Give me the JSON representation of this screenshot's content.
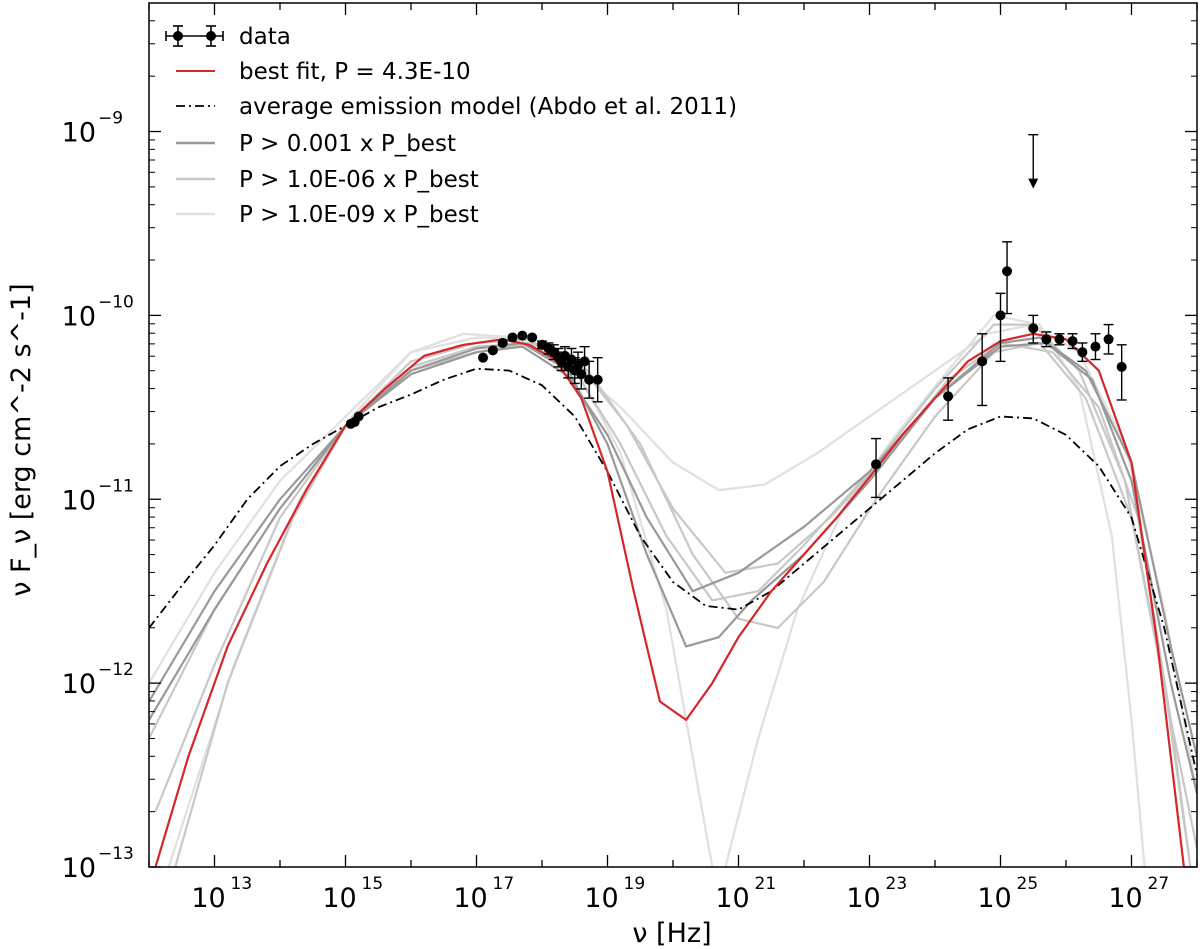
{
  "chart_data": {
    "type": "line",
    "xscale": "log",
    "yscale": "log",
    "xlabel": "ν [Hz]",
    "ylabel": "ν F_ν [erg cm^-2 s^-1]",
    "xlim": [
      1000000000000.0,
      1e+28
    ],
    "ylim": [
      1e-13,
      5e-09
    ],
    "x_ticks": [
      {
        "exp": 13,
        "label": "10",
        "sup": "13"
      },
      {
        "exp": 15,
        "label": "10",
        "sup": "15"
      },
      {
        "exp": 17,
        "label": "10",
        "sup": "17"
      },
      {
        "exp": 19,
        "label": "10",
        "sup": "19"
      },
      {
        "exp": 21,
        "label": "10",
        "sup": "21"
      },
      {
        "exp": 23,
        "label": "10",
        "sup": "23"
      },
      {
        "exp": 25,
        "label": "10",
        "sup": "25"
      },
      {
        "exp": 27,
        "label": "10",
        "sup": "27"
      }
    ],
    "y_ticks": [
      {
        "exp": -13,
        "label": "10",
        "sup": "−13"
      },
      {
        "exp": -12,
        "label": "10",
        "sup": "−12"
      },
      {
        "exp": -11,
        "label": "10",
        "sup": "−11"
      },
      {
        "exp": -10,
        "label": "10",
        "sup": "−10"
      },
      {
        "exp": -9,
        "label": "10",
        "sup": "−9"
      }
    ],
    "legend": [
      {
        "label": "data",
        "style": "errorbar",
        "color": "#000000"
      },
      {
        "label": "best fit, P = 4.3E-10",
        "style": "solid",
        "color": "#d62728"
      },
      {
        "label": "average emission model (Abdo et al. 2011)",
        "style": "dashdot",
        "color": "#000000"
      },
      {
        "label": "P > 0.001 x P_best",
        "style": "solid",
        "color": "#999999"
      },
      {
        "label": "P > 1.0E-06 x P_best",
        "style": "solid",
        "color": "#c8c8c8"
      },
      {
        "label": "P > 1.0E-09 x P_best",
        "style": "solid",
        "color": "#e0e0e0"
      }
    ],
    "best_fit": {
      "name": "best fit, P = 4.3E-10",
      "color": "#d62728",
      "points": [
        [
          12.1,
          -13.0
        ],
        [
          12.6,
          -12.4
        ],
        [
          13.2,
          -11.8
        ],
        [
          13.8,
          -11.35
        ],
        [
          14.4,
          -10.95
        ],
        [
          15.0,
          -10.6
        ],
        [
          15.6,
          -10.4
        ],
        [
          16.2,
          -10.22
        ],
        [
          16.8,
          -10.16
        ],
        [
          17.4,
          -10.13
        ],
        [
          17.8,
          -10.16
        ],
        [
          18.2,
          -10.24
        ],
        [
          18.6,
          -10.45
        ],
        [
          19.0,
          -10.85
        ],
        [
          19.4,
          -11.5
        ],
        [
          19.8,
          -12.1
        ],
        [
          20.2,
          -12.2
        ],
        [
          20.6,
          -12.0
        ],
        [
          21.0,
          -11.75
        ],
        [
          21.5,
          -11.5
        ],
        [
          22.0,
          -11.3
        ],
        [
          22.5,
          -11.1
        ],
        [
          23.0,
          -10.88
        ],
        [
          23.5,
          -10.65
        ],
        [
          24.0,
          -10.45
        ],
        [
          24.5,
          -10.25
        ],
        [
          25.0,
          -10.14
        ],
        [
          25.5,
          -10.1
        ],
        [
          26.0,
          -10.13
        ],
        [
          26.5,
          -10.3
        ],
        [
          27.0,
          -10.8
        ],
        [
          27.4,
          -11.8
        ],
        [
          27.8,
          -13.0
        ]
      ]
    },
    "average_model": {
      "name": "average emission model (Abdo et al. 2011)",
      "color": "#000000",
      "points": [
        [
          12.0,
          -11.7
        ],
        [
          12.5,
          -11.47
        ],
        [
          13.0,
          -11.25
        ],
        [
          13.5,
          -11.0
        ],
        [
          14.0,
          -10.82
        ],
        [
          14.5,
          -10.7
        ],
        [
          15.0,
          -10.6
        ],
        [
          15.5,
          -10.5
        ],
        [
          16.0,
          -10.43
        ],
        [
          16.5,
          -10.35
        ],
        [
          17.0,
          -10.29
        ],
        [
          17.5,
          -10.3
        ],
        [
          18.0,
          -10.38
        ],
        [
          18.5,
          -10.55
        ],
        [
          19.0,
          -10.85
        ],
        [
          19.5,
          -11.2
        ],
        [
          20.0,
          -11.45
        ],
        [
          20.5,
          -11.58
        ],
        [
          21.0,
          -11.6
        ],
        [
          21.5,
          -11.5
        ],
        [
          22.0,
          -11.35
        ],
        [
          22.5,
          -11.2
        ],
        [
          23.0,
          -11.05
        ],
        [
          23.5,
          -10.9
        ],
        [
          24.0,
          -10.75
        ],
        [
          24.5,
          -10.62
        ],
        [
          25.0,
          -10.55
        ],
        [
          25.5,
          -10.56
        ],
        [
          26.0,
          -10.65
        ],
        [
          26.5,
          -10.82
        ],
        [
          27.0,
          -11.1
        ],
        [
          27.5,
          -11.7
        ],
        [
          28.0,
          -12.5
        ]
      ]
    },
    "sample_curves": [
      {
        "name": "P > 0.001 x P_best",
        "color": "#999999",
        "points": [
          [
            12.0,
            -12.1
          ],
          [
            13.0,
            -11.5
          ],
          [
            14.0,
            -11.0
          ],
          [
            15.0,
            -10.6
          ],
          [
            16.0,
            -10.3
          ],
          [
            17.0,
            -10.18
          ],
          [
            17.7,
            -10.15
          ],
          [
            18.4,
            -10.3
          ],
          [
            19.0,
            -10.7
          ],
          [
            19.6,
            -11.3
          ],
          [
            20.2,
            -11.8
          ],
          [
            20.7,
            -11.75
          ],
          [
            21.2,
            -11.55
          ],
          [
            22.0,
            -11.3
          ],
          [
            23.0,
            -10.9
          ],
          [
            24.0,
            -10.45
          ],
          [
            25.0,
            -10.15
          ],
          [
            25.6,
            -10.12
          ],
          [
            26.3,
            -10.3
          ],
          [
            27.0,
            -10.8
          ],
          [
            27.6,
            -11.8
          ],
          [
            28.0,
            -12.4
          ]
        ]
      },
      {
        "name": "P > 0.001 x P_best",
        "color": "#999999",
        "points": [
          [
            12.0,
            -12.2
          ],
          [
            13.0,
            -11.6
          ],
          [
            14.0,
            -11.05
          ],
          [
            15.0,
            -10.6
          ],
          [
            16.0,
            -10.32
          ],
          [
            17.0,
            -10.2
          ],
          [
            17.7,
            -10.17
          ],
          [
            18.4,
            -10.33
          ],
          [
            19.0,
            -10.65
          ],
          [
            19.6,
            -11.1
          ],
          [
            20.3,
            -11.5
          ],
          [
            21.0,
            -11.4
          ],
          [
            22.0,
            -11.15
          ],
          [
            23.0,
            -10.85
          ],
          [
            24.0,
            -10.45
          ],
          [
            25.0,
            -10.17
          ],
          [
            25.7,
            -10.15
          ],
          [
            26.4,
            -10.35
          ],
          [
            27.0,
            -10.9
          ],
          [
            27.6,
            -12.0
          ],
          [
            28.0,
            -12.6
          ]
        ]
      },
      {
        "name": "P > 1.0E-06 x P_best",
        "color": "#c8c8c8",
        "points": [
          [
            12.4,
            -13.0
          ],
          [
            13.2,
            -12.0
          ],
          [
            14.2,
            -11.1
          ],
          [
            15.0,
            -10.6
          ],
          [
            16.0,
            -10.25
          ],
          [
            17.0,
            -10.15
          ],
          [
            17.8,
            -10.13
          ],
          [
            18.5,
            -10.3
          ],
          [
            19.2,
            -10.7
          ],
          [
            19.9,
            -11.2
          ],
          [
            20.6,
            -11.55
          ],
          [
            21.3,
            -11.5
          ],
          [
            22.0,
            -11.25
          ],
          [
            23.0,
            -10.85
          ],
          [
            24.0,
            -10.4
          ],
          [
            24.9,
            -10.05
          ],
          [
            25.5,
            -10.05
          ],
          [
            26.2,
            -10.3
          ],
          [
            26.9,
            -10.9
          ],
          [
            27.5,
            -12.0
          ],
          [
            27.9,
            -13.0
          ]
        ]
      },
      {
        "name": "P > 1.0E-06 x P_best",
        "color": "#c8c8c8",
        "points": [
          [
            12.1,
            -12.7
          ],
          [
            13.0,
            -11.9
          ],
          [
            14.0,
            -11.1
          ],
          [
            15.0,
            -10.6
          ],
          [
            16.0,
            -10.3
          ],
          [
            17.0,
            -10.2
          ],
          [
            17.8,
            -10.15
          ],
          [
            18.6,
            -10.28
          ],
          [
            19.3,
            -10.6
          ],
          [
            20.0,
            -11.05
          ],
          [
            20.8,
            -11.4
          ],
          [
            21.6,
            -11.35
          ],
          [
            22.4,
            -11.1
          ],
          [
            23.3,
            -10.75
          ],
          [
            24.2,
            -10.35
          ],
          [
            25.0,
            -10.15
          ],
          [
            25.8,
            -10.2
          ],
          [
            26.5,
            -10.5
          ],
          [
            27.1,
            -11.1
          ],
          [
            27.6,
            -12.2
          ],
          [
            27.9,
            -13.0
          ]
        ]
      },
      {
        "name": "P > 1.0E-09 x P_best",
        "color": "#e0e0e0",
        "points": [
          [
            12.0,
            -12.0
          ],
          [
            13.0,
            -11.4
          ],
          [
            14.0,
            -10.9
          ],
          [
            15.0,
            -10.55
          ],
          [
            16.0,
            -10.2
          ],
          [
            16.8,
            -10.1
          ],
          [
            17.6,
            -10.12
          ],
          [
            18.4,
            -10.25
          ],
          [
            19.2,
            -10.5
          ],
          [
            20.0,
            -10.8
          ],
          [
            20.7,
            -10.95
          ],
          [
            21.4,
            -10.92
          ],
          [
            22.2,
            -10.75
          ],
          [
            23.0,
            -10.55
          ],
          [
            24.0,
            -10.3
          ],
          [
            24.8,
            -10.1
          ],
          [
            25.5,
            -10.05
          ],
          [
            26.2,
            -10.2
          ],
          [
            26.9,
            -10.7
          ],
          [
            27.5,
            -11.6
          ],
          [
            28.0,
            -12.6
          ]
        ]
      },
      {
        "name": "P > 1.0E-09 x P_best",
        "color": "#e0e0e0",
        "points": [
          [
            12.3,
            -13.0
          ],
          [
            13.3,
            -11.9
          ],
          [
            14.3,
            -11.0
          ],
          [
            15.1,
            -10.55
          ],
          [
            16.0,
            -10.2
          ],
          [
            17.0,
            -10.12
          ],
          [
            17.8,
            -10.13
          ],
          [
            18.5,
            -10.28
          ],
          [
            19.2,
            -10.75
          ],
          [
            19.9,
            -11.6
          ],
          [
            20.4,
            -12.6
          ],
          [
            20.6,
            -13.0
          ]
        ]
      },
      {
        "name": "P > 1.0E-09 x P_best",
        "color": "#e0e0e0",
        "points": [
          [
            20.8,
            -13.0
          ],
          [
            21.3,
            -12.3
          ],
          [
            21.9,
            -11.6
          ],
          [
            22.6,
            -11.05
          ],
          [
            23.4,
            -10.65
          ],
          [
            24.2,
            -10.3
          ],
          [
            24.9,
            -10.0
          ],
          [
            25.6,
            -10.05
          ],
          [
            26.2,
            -10.4
          ],
          [
            26.7,
            -11.2
          ],
          [
            27.0,
            -12.2
          ],
          [
            27.2,
            -13.0
          ]
        ]
      },
      {
        "name": "P > 1.0E-06 x P_best",
        "color": "#c8c8c8",
        "points": [
          [
            12.0,
            -12.3
          ],
          [
            13.0,
            -11.6
          ],
          [
            14.0,
            -11.05
          ],
          [
            15.0,
            -10.6
          ],
          [
            16.0,
            -10.28
          ],
          [
            17.0,
            -10.17
          ],
          [
            17.9,
            -10.15
          ],
          [
            18.7,
            -10.3
          ],
          [
            19.5,
            -10.7
          ],
          [
            20.3,
            -11.3
          ],
          [
            21.0,
            -11.65
          ],
          [
            21.6,
            -11.7
          ],
          [
            22.3,
            -11.45
          ],
          [
            23.1,
            -11.0
          ],
          [
            24.0,
            -10.55
          ],
          [
            24.9,
            -10.2
          ],
          [
            25.6,
            -10.15
          ],
          [
            26.3,
            -10.45
          ],
          [
            27.0,
            -11.1
          ],
          [
            27.6,
            -12.2
          ],
          [
            28.0,
            -12.9
          ]
        ]
      }
    ],
    "data_points": [
      {
        "x": 15.08,
        "y": -10.59,
        "yerr_lo": 0.0,
        "yerr_hi": 0.0
      },
      {
        "x": 15.14,
        "y": -10.58,
        "yerr_lo": 0.0,
        "yerr_hi": 0.0
      },
      {
        "x": 15.2,
        "y": -10.55,
        "yerr_lo": 0.0,
        "yerr_hi": 0.0
      },
      {
        "x": 17.1,
        "y": -10.23,
        "yerr_lo": 0.0,
        "yerr_hi": 0.0
      },
      {
        "x": 17.25,
        "y": -10.19,
        "yerr_lo": 0.0,
        "yerr_hi": 0.0
      },
      {
        "x": 17.4,
        "y": -10.15,
        "yerr_lo": 0.0,
        "yerr_hi": 0.0
      },
      {
        "x": 17.55,
        "y": -10.12,
        "yerr_lo": 0.0,
        "yerr_hi": 0.0
      },
      {
        "x": 17.7,
        "y": -10.11,
        "yerr_lo": 0.0,
        "yerr_hi": 0.0
      },
      {
        "x": 17.85,
        "y": -10.12,
        "yerr_lo": 0.0,
        "yerr_hi": 0.0
      },
      {
        "x": 18.0,
        "y": -10.16,
        "yerr_lo": 0.02,
        "yerr_hi": 0.02
      },
      {
        "x": 18.1,
        "y": -10.18,
        "yerr_lo": 0.03,
        "yerr_hi": 0.03
      },
      {
        "x": 18.18,
        "y": -10.2,
        "yerr_lo": 0.04,
        "yerr_hi": 0.04
      },
      {
        "x": 18.25,
        "y": -10.23,
        "yerr_lo": 0.05,
        "yerr_hi": 0.05
      },
      {
        "x": 18.3,
        "y": -10.25,
        "yerr_lo": 0.05,
        "yerr_hi": 0.05
      },
      {
        "x": 18.35,
        "y": -10.22,
        "yerr_lo": 0.05,
        "yerr_hi": 0.05
      },
      {
        "x": 18.4,
        "y": -10.28,
        "yerr_lo": 0.06,
        "yerr_hi": 0.06
      },
      {
        "x": 18.45,
        "y": -10.24,
        "yerr_lo": 0.06,
        "yerr_hi": 0.06
      },
      {
        "x": 18.5,
        "y": -10.3,
        "yerr_lo": 0.07,
        "yerr_hi": 0.07
      },
      {
        "x": 18.55,
        "y": -10.27,
        "yerr_lo": 0.07,
        "yerr_hi": 0.07
      },
      {
        "x": 18.6,
        "y": -10.32,
        "yerr_lo": 0.08,
        "yerr_hi": 0.08
      },
      {
        "x": 18.65,
        "y": -10.25,
        "yerr_lo": 0.08,
        "yerr_hi": 0.08
      },
      {
        "x": 18.72,
        "y": -10.35,
        "yerr_lo": 0.1,
        "yerr_hi": 0.1
      },
      {
        "x": 18.85,
        "y": -10.35,
        "yerr_lo": 0.12,
        "yerr_hi": 0.12
      },
      {
        "x": 23.1,
        "y": -10.81,
        "yerr_lo": 0.18,
        "yerr_hi": 0.14
      },
      {
        "x": 24.2,
        "y": -10.44,
        "yerr_lo": 0.13,
        "yerr_hi": 0.1
      },
      {
        "x": 24.72,
        "y": -10.25,
        "yerr_lo": 0.24,
        "yerr_hi": 0.15
      },
      {
        "x": 25.0,
        "y": -10.0,
        "yerr_lo": 0.25,
        "yerr_hi": 0.12
      },
      {
        "x": 25.1,
        "y": -9.76,
        "yerr_lo": 0.23,
        "yerr_hi": 0.16
      },
      {
        "x": 25.5,
        "y": -10.07,
        "yerr_lo": 0.08,
        "yerr_hi": 0.07
      },
      {
        "x": 25.7,
        "y": -10.13,
        "yerr_lo": 0.04,
        "yerr_hi": 0.04
      },
      {
        "x": 25.9,
        "y": -10.13,
        "yerr_lo": 0.03,
        "yerr_hi": 0.03
      },
      {
        "x": 26.1,
        "y": -10.14,
        "yerr_lo": 0.04,
        "yerr_hi": 0.04
      },
      {
        "x": 26.25,
        "y": -10.2,
        "yerr_lo": 0.05,
        "yerr_hi": 0.05
      },
      {
        "x": 26.45,
        "y": -10.17,
        "yerr_lo": 0.07,
        "yerr_hi": 0.07
      },
      {
        "x": 26.65,
        "y": -10.13,
        "yerr_lo": 0.08,
        "yerr_hi": 0.08
      },
      {
        "x": 26.85,
        "y": -10.28,
        "yerr_lo": 0.18,
        "yerr_hi": 0.12
      }
    ],
    "upper_limits": [
      {
        "x": 25.5,
        "y": -9.3
      }
    ]
  }
}
